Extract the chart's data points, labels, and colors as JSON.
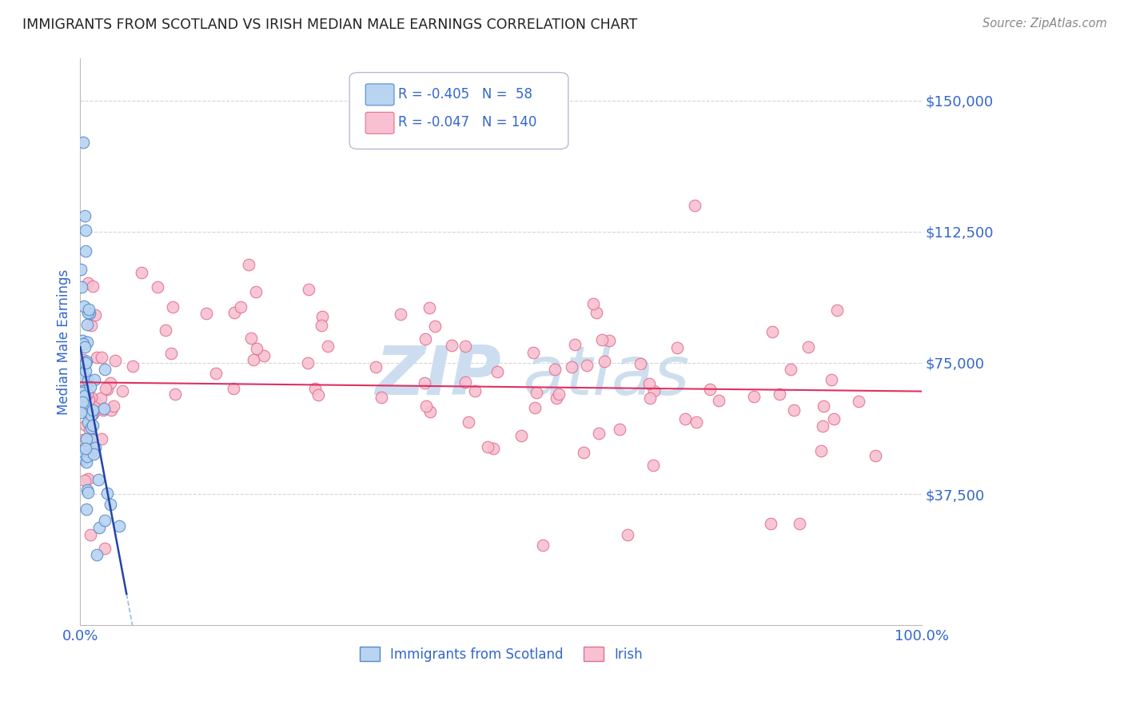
{
  "title": "IMMIGRANTS FROM SCOTLAND VS IRISH MEDIAN MALE EARNINGS CORRELATION CHART",
  "source": "Source: ZipAtlas.com",
  "ylabel": "Median Male Earnings",
  "ytick_labels": [
    "$150,000",
    "$112,500",
    "$75,000",
    "$37,500"
  ],
  "ytick_values": [
    150000,
    112500,
    75000,
    37500
  ],
  "ylim": [
    0,
    162000
  ],
  "xlim": [
    0.0,
    1.0
  ],
  "scotland_color": "#b8d4f0",
  "scotland_edge_color": "#5588cc",
  "ireland_color": "#f8c0d0",
  "ireland_edge_color": "#e07090",
  "trend_scotland_color": "#2244aa",
  "trend_ireland_color": "#e03060",
  "trend_scotland_dashed_color": "#99bbdd",
  "background_color": "#ffffff",
  "grid_color": "#cccccc",
  "title_color": "#222222",
  "axis_label_color": "#3366cc",
  "tick_label_color": "#3366cc",
  "watermark_color": "#ccddf0",
  "legend_R1": "-0.405",
  "legend_N1": "58",
  "legend_R2": "-0.047",
  "legend_N2": "140",
  "legend_label1": "Immigrants from Scotland",
  "legend_label2": "Irish"
}
